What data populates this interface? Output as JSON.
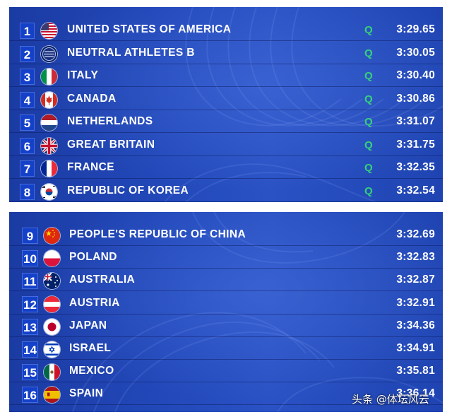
{
  "qualified_results": [
    {
      "rank": "1",
      "country": "UNITED STATES OF AMERICA",
      "flag": "usa-flag-icon",
      "mark": "Q",
      "time": "3:29.65"
    },
    {
      "rank": "2",
      "country": "NEUTRAL ATHLETES B",
      "flag": "neutral-athletes-flag-icon",
      "mark": "Q",
      "time": "3:30.05"
    },
    {
      "rank": "3",
      "country": "ITALY",
      "flag": "italy-flag-icon",
      "mark": "Q",
      "time": "3:30.40"
    },
    {
      "rank": "4",
      "country": "CANADA",
      "flag": "canada-flag-icon",
      "mark": "Q",
      "time": "3:30.86"
    },
    {
      "rank": "5",
      "country": "NETHERLANDS",
      "flag": "netherlands-flag-icon",
      "mark": "Q",
      "time": "3:31.07"
    },
    {
      "rank": "6",
      "country": "GREAT BRITAIN",
      "flag": "great-britain-flag-icon",
      "mark": "Q",
      "time": "3:31.75"
    },
    {
      "rank": "7",
      "country": "FRANCE",
      "flag": "france-flag-icon",
      "mark": "Q",
      "time": "3:32.35"
    },
    {
      "rank": "8",
      "country": "REPUBLIC OF KOREA",
      "flag": "korea-flag-icon",
      "mark": "Q",
      "time": "3:32.54"
    }
  ],
  "other_results": [
    {
      "rank": "9",
      "country": "PEOPLE'S REPUBLIC OF CHINA",
      "flag": "china-flag-icon",
      "time": "3:32.69"
    },
    {
      "rank": "10",
      "country": "POLAND",
      "flag": "poland-flag-icon",
      "time": "3:32.83"
    },
    {
      "rank": "11",
      "country": "AUSTRALIA",
      "flag": "australia-flag-icon",
      "time": "3:32.87"
    },
    {
      "rank": "12",
      "country": "AUSTRIA",
      "flag": "austria-flag-icon",
      "time": "3:32.91"
    },
    {
      "rank": "13",
      "country": "JAPAN",
      "flag": "japan-flag-icon",
      "time": "3:34.36"
    },
    {
      "rank": "14",
      "country": "ISRAEL",
      "flag": "israel-flag-icon",
      "time": "3:34.91"
    },
    {
      "rank": "15",
      "country": "MEXICO",
      "flag": "mexico-flag-icon",
      "time": "3:35.81"
    },
    {
      "rank": "16",
      "country": "SPAIN",
      "flag": "spain-flag-icon",
      "time": "3:36.14"
    }
  ],
  "watermark": "头条 @体坛风云",
  "colors": {
    "panel_blue": "#2248b9",
    "rank_box": "#1541c9",
    "qualified_mark": "#35d27a",
    "text": "#ffffff"
  }
}
